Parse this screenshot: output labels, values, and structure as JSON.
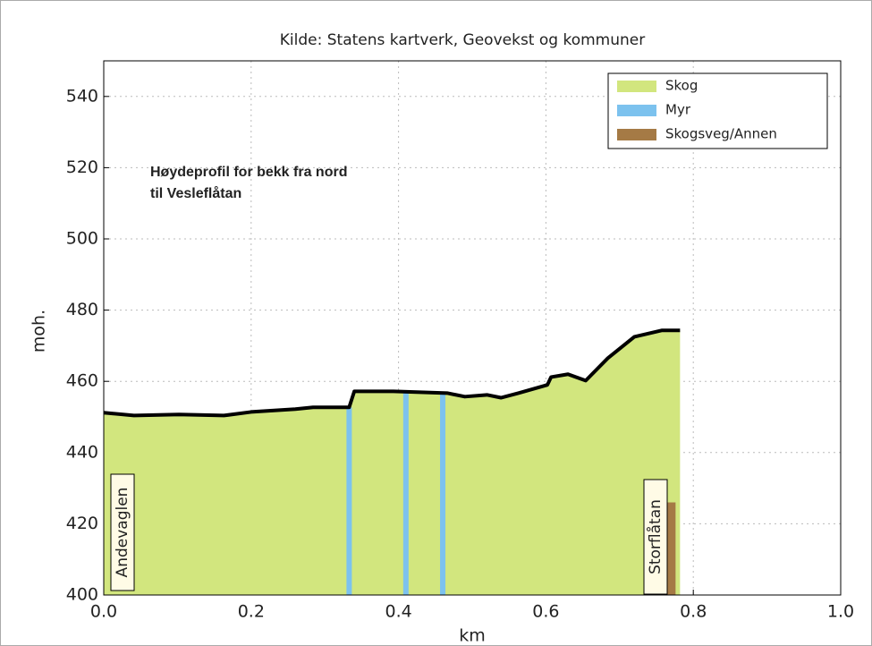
{
  "chart_data": {
    "type": "area",
    "title": "Kilde: Statens kartverk, Geovekst og kommuner",
    "xlabel": "km",
    "ylabel": "moh.",
    "note": [
      "Høydeprofil for bekk fra nord",
      "til Vesleflåtan"
    ],
    "annotations": [
      "Andevaglen",
      "Storflåtan"
    ],
    "xlim": [
      0,
      1
    ],
    "ylim": [
      400,
      550
    ],
    "xticks": [
      {
        "value": 0,
        "label": "0.0"
      },
      0.2,
      0.4,
      0.6,
      0.8,
      {
        "value": 1,
        "label": "1.0"
      }
    ],
    "yticks": [
      400,
      420,
      440,
      460,
      480,
      500,
      520,
      540
    ],
    "grid": true,
    "legend": "upper right",
    "series": [
      {
        "name": "Skog",
        "color": "#d2e67e",
        "x": [
          0,
          0.041,
          0.102,
          0.163,
          0.2,
          0.26,
          0.284,
          0.333,
          0.34,
          0.393,
          0.466,
          0.49,
          0.52,
          0.539,
          0.563,
          0.602,
          0.607,
          0.63,
          0.654,
          0.684,
          0.72,
          0.757,
          0.782
        ],
        "values": [
          451.2,
          450.4,
          450.7,
          450.4,
          451.4,
          452.2,
          452.7,
          452.7,
          457.2,
          457.2,
          456.7,
          455.7,
          456.2,
          455.4,
          456.7,
          459,
          461.2,
          462,
          460.2,
          466.5,
          472.5,
          474.3,
          474.3
        ]
      },
      {
        "name": "Myr",
        "color": "#7cc2ee",
        "x": [
          0.333,
          0.41,
          0.46
        ],
        "values": [
          452.7,
          457.2,
          456.6
        ]
      },
      {
        "name": "Skogsveg/Annen",
        "color": "#a57a45",
        "x": [
          0.765
        ],
        "values": [
          426
        ]
      }
    ]
  }
}
